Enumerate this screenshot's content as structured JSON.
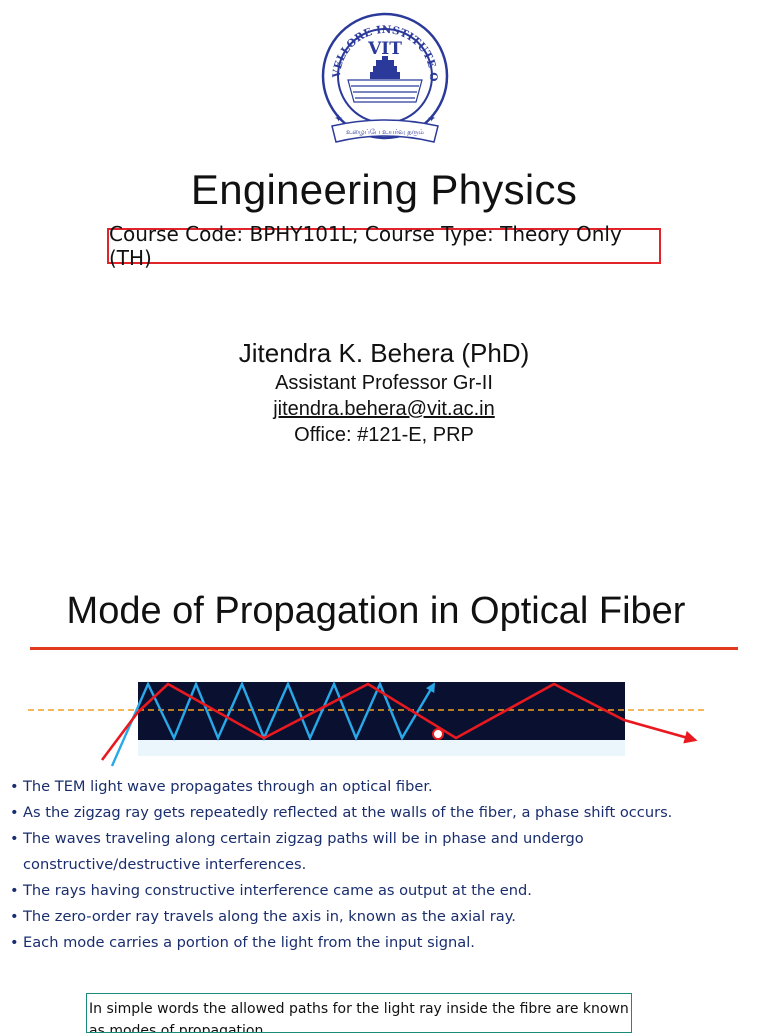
{
  "logo": {
    "name": "VIT",
    "arc_text": "VELLORE INSTITUTE OF TECHNOLOGY",
    "motto": "உழைப்பே உயர்வு தரும்"
  },
  "cover": {
    "title": "Engineering Physics",
    "course_line": "Course Code: BPHY101L; Course Type: Theory Only (TH)",
    "author_name": "Jitendra K. Behera (PhD)",
    "author_role": "Assistant Professor Gr-II",
    "author_email": "jitendra.behera@vit.ac.in",
    "author_office": "Office: #121-E, PRP"
  },
  "slide": {
    "title": "Mode of Propagation in Optical Fiber",
    "bullets": [
      "The TEM light wave propagates through an optical fiber.",
      "As the zigzag ray gets repeatedly reflected at the walls of the fiber, a phase shift occurs.",
      "The waves traveling along certain zigzag paths will be in phase and undergo constructive/destructive interferences.",
      "The rays having constructive interference came as output at the end.",
      "The zero-order ray travels along the axis in, known as the axial ray.",
      "Each mode carries a portion of the light from the input signal."
    ],
    "note": "In simple words the allowed paths for the light ray inside the fibre are known as modes of propagation."
  },
  "colors": {
    "accent_red": "#e0242a",
    "divider": "#e23a1f",
    "bullet_text": "#1a2e6e",
    "logo_blue": "#2b3a9a",
    "fiber_core": "#0a1030",
    "ray_cyan": "#29a8e8",
    "ray_red": "#e8191f",
    "axis_orange": "#f0a020",
    "note_border": "#1a8a7a"
  }
}
